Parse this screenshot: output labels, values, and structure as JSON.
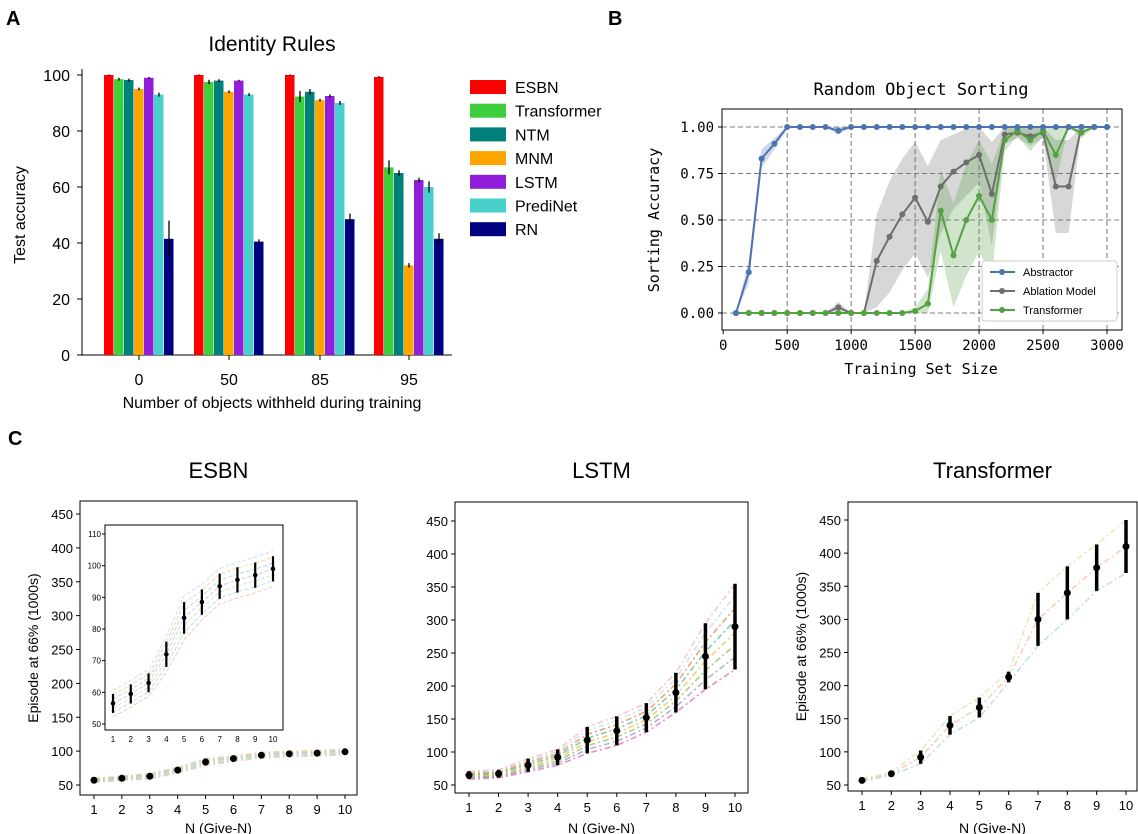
{
  "panel_letters": [
    "A",
    "B",
    "C"
  ],
  "colors": {
    "ESBN": "#ff0000",
    "Transformer": "#3ecf3e",
    "NTM": "#00807a",
    "MNM": "#ffa500",
    "LSTM": "#8f1fd8",
    "PrediNet": "#48d1cc",
    "RN": "#000080",
    "abstractor": "#4c72b0",
    "ablation": "#6e6e6e",
    "transformer_b": "#55a043"
  },
  "chart_data": [
    {
      "id": "A",
      "type": "bar",
      "title": "Identity Rules",
      "xlabel": "Number of objects withheld during training",
      "ylabel": "Test accuracy",
      "categories": [
        "0",
        "50",
        "85",
        "95"
      ],
      "ylim": [
        0,
        100
      ],
      "yticks": [
        0,
        20,
        40,
        60,
        80,
        100
      ],
      "legend_position": "right",
      "series": [
        {
          "name": "ESBN",
          "values": [
            100,
            100,
            100,
            99.3
          ],
          "err": [
            0.2,
            0.2,
            0.2,
            0.3
          ]
        },
        {
          "name": "Transformer",
          "values": [
            98.5,
            97.5,
            92.3,
            67
          ],
          "err": [
            0.5,
            0.8,
            2,
            2.5
          ]
        },
        {
          "name": "NTM",
          "values": [
            98.2,
            98,
            94,
            65
          ],
          "err": [
            0.5,
            0.5,
            1,
            1
          ]
        },
        {
          "name": "MNM",
          "values": [
            95,
            94,
            91,
            32
          ],
          "err": [
            0.5,
            0.5,
            0.5,
            0.8
          ]
        },
        {
          "name": "LSTM",
          "values": [
            99,
            98,
            92.5,
            62.5
          ],
          "err": [
            0.3,
            0.3,
            0.6,
            0.8
          ]
        },
        {
          "name": "PrediNet",
          "values": [
            93,
            93,
            90,
            60
          ],
          "err": [
            0.7,
            0.5,
            0.7,
            2
          ]
        },
        {
          "name": "RN",
          "values": [
            41.5,
            40.5,
            48.5,
            41.5
          ],
          "err": [
            6.5,
            0.8,
            2,
            2
          ]
        }
      ]
    },
    {
      "id": "B",
      "type": "line",
      "title": "Random Object Sorting",
      "xlabel": "Training Set Size",
      "ylabel": "Sorting Accuracy",
      "xlim": [
        100,
        3000
      ],
      "ylim": [
        0,
        1
      ],
      "xticks": [
        0,
        500,
        1000,
        1500,
        2000,
        2500,
        3000
      ],
      "yticks": [
        "0.00",
        "0.25",
        "0.50",
        "0.75",
        "1.00"
      ],
      "grid": true,
      "legend_position": "lower-right",
      "x": [
        100,
        200,
        300,
        400,
        500,
        600,
        700,
        800,
        900,
        1000,
        1100,
        1200,
        1300,
        1400,
        1500,
        1600,
        1700,
        1800,
        1900,
        2000,
        2100,
        2200,
        2300,
        2400,
        2500,
        2600,
        2700,
        2800,
        2900,
        3000
      ],
      "series": [
        {
          "name": "Abstractor",
          "values": [
            0,
            0.22,
            0.83,
            0.91,
            1,
            1,
            1,
            1,
            0.98,
            1,
            1,
            1,
            1,
            1,
            1,
            1,
            1,
            1,
            1,
            1,
            1,
            1,
            1,
            1,
            1,
            1,
            1,
            1,
            1,
            1
          ],
          "band": [
            0,
            0.06,
            0.05,
            0.03,
            0.01,
            0,
            0,
            0,
            0.02,
            0,
            0,
            0,
            0,
            0,
            0,
            0,
            0,
            0,
            0,
            0,
            0,
            0,
            0,
            0,
            0,
            0,
            0,
            0,
            0,
            0
          ]
        },
        {
          "name": "Ablation Model",
          "values": [
            0,
            0,
            0,
            0,
            0,
            0,
            0,
            0,
            0.03,
            0,
            0,
            0.28,
            0.41,
            0.53,
            0.62,
            0.49,
            0.68,
            0.76,
            0.81,
            0.85,
            0.64,
            0.96,
            0.97,
            0.95,
            0.97,
            0.68,
            0.68,
            1,
            1,
            1
          ],
          "band": [
            0,
            0,
            0,
            0,
            0,
            0,
            0,
            0,
            0.03,
            0,
            0,
            0.25,
            0.3,
            0.3,
            0.3,
            0.3,
            0.25,
            0.2,
            0.18,
            0.15,
            0.28,
            0.05,
            0.03,
            0.05,
            0.03,
            0.25,
            0.25,
            0,
            0,
            0
          ]
        },
        {
          "name": "Transformer",
          "values": [
            0,
            0,
            0,
            0,
            0,
            0,
            0,
            0,
            0,
            0,
            0,
            0,
            0,
            0,
            0.01,
            0.05,
            0.55,
            0.31,
            0.5,
            0.63,
            0.5,
            0.93,
            0.98,
            0.93,
            0.98,
            0.85,
            1,
            0.97,
            1,
            1
          ],
          "band": [
            0,
            0,
            0,
            0,
            0,
            0,
            0,
            0,
            0,
            0,
            0,
            0,
            0,
            0,
            0.02,
            0.08,
            0.22,
            0.28,
            0.3,
            0.3,
            0.3,
            0.06,
            0.03,
            0.06,
            0.03,
            0.15,
            0,
            0.03,
            0,
            0
          ]
        }
      ]
    },
    {
      "id": "C1",
      "type": "line",
      "title": "ESBN",
      "xlabel": "N (Give-N)",
      "ylabel": "Episode at 66% (1000s)",
      "x": [
        1,
        2,
        3,
        4,
        5,
        6,
        7,
        8,
        9,
        10
      ],
      "ylim": [
        50,
        450
      ],
      "yticks": [
        50,
        100,
        150,
        200,
        250,
        300,
        350,
        400,
        450
      ],
      "series": [
        {
          "name": "mean",
          "values": [
            57,
            60,
            63,
            72,
            84,
            89,
            94,
            96,
            97,
            99
          ],
          "err": [
            3,
            3,
            4,
            4,
            5,
            4,
            4,
            4,
            4,
            4
          ]
        }
      ],
      "inset": {
        "x": [
          1,
          2,
          3,
          4,
          5,
          6,
          7,
          8,
          9,
          10
        ],
        "ylim": [
          50,
          110
        ],
        "yticks": [
          50,
          60,
          70,
          80,
          90,
          100,
          110
        ],
        "values": [
          56.5,
          59.5,
          63,
          72,
          83.5,
          88.5,
          93.5,
          95.5,
          97,
          99
        ],
        "err": [
          3,
          3,
          3,
          4,
          5,
          4,
          4,
          4,
          4,
          4
        ]
      }
    },
    {
      "id": "C2",
      "type": "line",
      "title": "LSTM",
      "xlabel": "N (Give-N)",
      "ylabel": "",
      "x": [
        1,
        2,
        3,
        4,
        5,
        6,
        7,
        8,
        9,
        10
      ],
      "ylim": [
        50,
        450
      ],
      "yticks": [
        50,
        100,
        150,
        200,
        250,
        300,
        350,
        400,
        450
      ],
      "series": [
        {
          "name": "mean",
          "values": [
            65,
            67,
            80,
            92,
            118,
            132,
            152,
            190,
            245,
            290
          ],
          "err": [
            6,
            6,
            10,
            12,
            20,
            22,
            22,
            30,
            50,
            65
          ]
        }
      ]
    },
    {
      "id": "C3",
      "type": "line",
      "title": "Transformer",
      "xlabel": "N (Give-N)",
      "ylabel": "Episode at 66% (1000s)",
      "x": [
        1,
        2,
        3,
        4,
        5,
        6,
        7,
        8,
        9,
        10
      ],
      "ylim": [
        50,
        450
      ],
      "yticks": [
        50,
        100,
        150,
        200,
        250,
        300,
        350,
        400,
        450
      ],
      "series": [
        {
          "name": "mean",
          "values": [
            57,
            67,
            92,
            140,
            167,
            213,
            300,
            340,
            378,
            410
          ],
          "err": [
            2,
            2,
            10,
            14,
            15,
            8,
            40,
            40,
            35,
            40
          ]
        }
      ]
    }
  ]
}
